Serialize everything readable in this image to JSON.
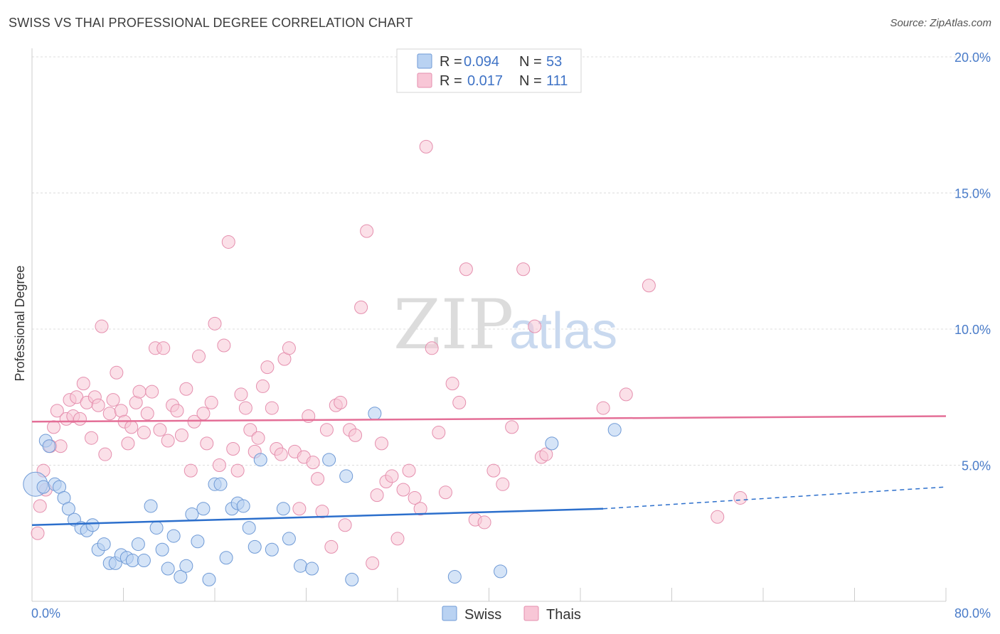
{
  "title": "SWISS VS THAI PROFESSIONAL DEGREE CORRELATION CHART",
  "source": "Source: ZipAtlas.com",
  "watermark": {
    "zip": "ZIP",
    "atlas": "atlas"
  },
  "legend_top": [
    {
      "r_label": "R = ",
      "r_value": "0.094",
      "n_label": "N = ",
      "n_value": "53"
    },
    {
      "r_label": "R = ",
      "r_value": "0.017",
      "n_label": "N = ",
      "n_value": "111"
    }
  ],
  "legend_bottom": [
    "Swiss",
    "Thais"
  ],
  "colors": {
    "swiss_fill": "#b9d2f2",
    "swiss_stroke": "#6f9ad6",
    "swiss_line": "#2c6fcc",
    "thai_fill": "#f8c6d6",
    "thai_stroke": "#e58fae",
    "thai_line": "#e46f97",
    "tick": "#4a7cc9",
    "grid": "#dddddd"
  },
  "chart_data": {
    "type": "scatter",
    "title": "SWISS VS THAI PROFESSIONAL DEGREE CORRELATION CHART",
    "ylabel": "Professional Degree",
    "xlabel": "",
    "xlim": [
      0,
      80
    ],
    "ylim": [
      0,
      20
    ],
    "x_tick_labels": [
      "0.0%",
      "80.0%"
    ],
    "y_ticks": [
      5,
      10,
      15,
      20
    ],
    "y_tick_labels": [
      "5.0%",
      "10.0%",
      "15.0%",
      "20.0%"
    ],
    "grid": true,
    "legend": "top-center",
    "series": [
      {
        "name": "Swiss",
        "R": 0.094,
        "N": 53,
        "trend": {
          "x": [
            0,
            50
          ],
          "y": [
            2.8,
            3.4
          ],
          "dashed_to": [
            80,
            4.2
          ]
        },
        "points": [
          [
            1.0,
            4.2
          ],
          [
            1.2,
            5.9
          ],
          [
            1.5,
            5.7
          ],
          [
            2.0,
            4.3
          ],
          [
            2.4,
            4.2
          ],
          [
            2.8,
            3.8
          ],
          [
            3.2,
            3.4
          ],
          [
            3.7,
            3.0
          ],
          [
            4.3,
            2.7
          ],
          [
            4.8,
            2.6
          ],
          [
            5.3,
            2.8
          ],
          [
            5.8,
            1.9
          ],
          [
            6.3,
            2.1
          ],
          [
            6.8,
            1.4
          ],
          [
            7.3,
            1.4
          ],
          [
            7.8,
            1.7
          ],
          [
            8.3,
            1.6
          ],
          [
            8.8,
            1.5
          ],
          [
            9.3,
            2.1
          ],
          [
            9.8,
            1.5
          ],
          [
            10.4,
            3.5
          ],
          [
            10.9,
            2.7
          ],
          [
            11.4,
            1.9
          ],
          [
            11.9,
            1.2
          ],
          [
            12.4,
            2.4
          ],
          [
            13.0,
            0.9
          ],
          [
            13.5,
            1.3
          ],
          [
            14.0,
            3.2
          ],
          [
            14.5,
            2.2
          ],
          [
            15.0,
            3.4
          ],
          [
            15.5,
            0.8
          ],
          [
            16.0,
            4.3
          ],
          [
            16.5,
            4.3
          ],
          [
            17.0,
            1.6
          ],
          [
            17.5,
            3.4
          ],
          [
            18.0,
            3.6
          ],
          [
            18.5,
            3.5
          ],
          [
            19.0,
            2.7
          ],
          [
            19.5,
            2.0
          ],
          [
            20.0,
            5.2
          ],
          [
            21.0,
            1.9
          ],
          [
            22.0,
            3.4
          ],
          [
            22.5,
            2.3
          ],
          [
            23.5,
            1.3
          ],
          [
            24.5,
            1.2
          ],
          [
            26.0,
            5.2
          ],
          [
            27.5,
            4.6
          ],
          [
            28.0,
            0.8
          ],
          [
            30.0,
            6.9
          ],
          [
            37.0,
            0.9
          ],
          [
            41.0,
            1.1
          ],
          [
            45.5,
            5.8
          ],
          [
            51.0,
            6.3
          ]
        ]
      },
      {
        "name": "Thais",
        "R": 0.017,
        "N": 111,
        "trend": {
          "x": [
            0,
            80
          ],
          "y": [
            6.6,
            6.8
          ]
        },
        "points": [
          [
            0.5,
            2.5
          ],
          [
            0.7,
            3.5
          ],
          [
            1.0,
            4.8
          ],
          [
            1.2,
            4.1
          ],
          [
            1.6,
            5.7
          ],
          [
            1.9,
            6.4
          ],
          [
            2.2,
            7.0
          ],
          [
            2.5,
            5.7
          ],
          [
            3.0,
            6.7
          ],
          [
            3.3,
            7.4
          ],
          [
            3.6,
            6.8
          ],
          [
            3.9,
            7.5
          ],
          [
            4.2,
            6.7
          ],
          [
            4.5,
            8.0
          ],
          [
            4.8,
            7.3
          ],
          [
            5.2,
            6.0
          ],
          [
            5.5,
            7.5
          ],
          [
            5.8,
            7.2
          ],
          [
            6.1,
            10.1
          ],
          [
            6.4,
            5.4
          ],
          [
            6.8,
            6.9
          ],
          [
            7.1,
            7.4
          ],
          [
            7.4,
            8.4
          ],
          [
            7.8,
            7.0
          ],
          [
            8.1,
            6.6
          ],
          [
            8.4,
            5.8
          ],
          [
            8.7,
            6.4
          ],
          [
            9.1,
            7.3
          ],
          [
            9.4,
            7.7
          ],
          [
            9.8,
            6.2
          ],
          [
            10.1,
            6.9
          ],
          [
            10.5,
            7.7
          ],
          [
            10.8,
            9.3
          ],
          [
            11.2,
            6.3
          ],
          [
            11.5,
            9.3
          ],
          [
            11.9,
            5.9
          ],
          [
            12.3,
            7.2
          ],
          [
            12.7,
            7.0
          ],
          [
            13.1,
            6.1
          ],
          [
            13.5,
            7.8
          ],
          [
            13.9,
            4.8
          ],
          [
            14.2,
            6.6
          ],
          [
            14.6,
            9.0
          ],
          [
            15.0,
            6.9
          ],
          [
            15.3,
            5.8
          ],
          [
            15.7,
            7.3
          ],
          [
            16.0,
            10.2
          ],
          [
            16.4,
            5.0
          ],
          [
            16.8,
            9.4
          ],
          [
            17.2,
            13.2
          ],
          [
            17.6,
            5.6
          ],
          [
            18.0,
            4.8
          ],
          [
            18.3,
            7.6
          ],
          [
            18.7,
            7.1
          ],
          [
            19.1,
            6.3
          ],
          [
            19.5,
            5.5
          ],
          [
            19.8,
            6.0
          ],
          [
            20.2,
            7.9
          ],
          [
            20.6,
            8.6
          ],
          [
            21.0,
            7.1
          ],
          [
            21.4,
            5.6
          ],
          [
            21.8,
            5.4
          ],
          [
            22.1,
            8.9
          ],
          [
            22.5,
            9.3
          ],
          [
            23.0,
            5.5
          ],
          [
            23.4,
            3.4
          ],
          [
            23.8,
            5.3
          ],
          [
            24.2,
            6.8
          ],
          [
            24.6,
            5.1
          ],
          [
            25.0,
            4.5
          ],
          [
            25.4,
            3.3
          ],
          [
            25.8,
            6.3
          ],
          [
            26.2,
            2.0
          ],
          [
            26.6,
            7.2
          ],
          [
            27.0,
            7.3
          ],
          [
            27.4,
            2.8
          ],
          [
            27.8,
            6.3
          ],
          [
            28.3,
            6.1
          ],
          [
            28.8,
            10.8
          ],
          [
            29.3,
            13.6
          ],
          [
            29.8,
            1.4
          ],
          [
            30.2,
            3.9
          ],
          [
            30.6,
            5.8
          ],
          [
            31.0,
            4.4
          ],
          [
            31.5,
            4.6
          ],
          [
            32.0,
            2.3
          ],
          [
            32.5,
            4.1
          ],
          [
            33.0,
            4.8
          ],
          [
            33.5,
            3.8
          ],
          [
            34.0,
            3.4
          ],
          [
            34.5,
            16.7
          ],
          [
            35.0,
            9.3
          ],
          [
            35.6,
            6.2
          ],
          [
            36.2,
            4.0
          ],
          [
            36.8,
            8.0
          ],
          [
            37.4,
            7.3
          ],
          [
            38.0,
            12.2
          ],
          [
            38.8,
            3.0
          ],
          [
            39.6,
            2.9
          ],
          [
            40.4,
            4.8
          ],
          [
            41.2,
            4.3
          ],
          [
            42.0,
            6.4
          ],
          [
            43.0,
            12.2
          ],
          [
            44.0,
            10.1
          ],
          [
            44.6,
            5.3
          ],
          [
            45.0,
            5.4
          ],
          [
            50.0,
            7.1
          ],
          [
            52.0,
            7.6
          ],
          [
            54.0,
            11.6
          ],
          [
            60.0,
            3.1
          ],
          [
            62.0,
            3.8
          ]
        ]
      }
    ]
  }
}
